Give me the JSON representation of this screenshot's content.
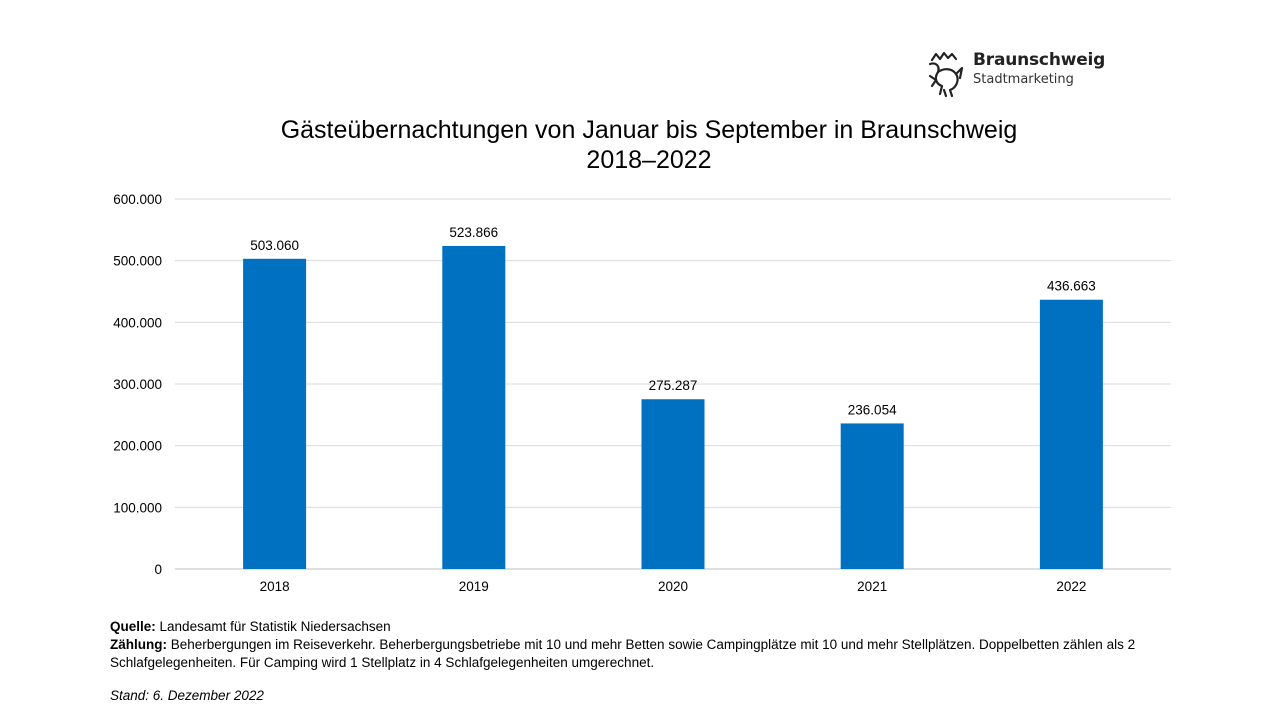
{
  "logo": {
    "name": "Braunschweig",
    "subtitle": "Stadtmarketing"
  },
  "chart_data": {
    "type": "bar",
    "title": "Gästeübernachtungen von Januar bis September in Braunschweig",
    "subtitle": "2018–2022",
    "categories": [
      "2018",
      "2019",
      "2020",
      "2021",
      "2022"
    ],
    "values": [
      503060,
      523866,
      275287,
      236054,
      436663
    ],
    "data_labels": [
      "503.060",
      "523.866",
      "275.287",
      "236.054",
      "436.663"
    ],
    "ylim": [
      0,
      600000
    ],
    "yticks": [
      0,
      100000,
      200000,
      300000,
      400000,
      500000,
      600000
    ],
    "ytick_labels": [
      "0",
      "100.000",
      "200.000",
      "300.000",
      "400.000",
      "500.000",
      "600.000"
    ],
    "xlabel": "",
    "ylabel": "",
    "grid": true,
    "legend": "none",
    "bar_color": "#0070C0"
  },
  "notes": {
    "source_label": "Quelle:",
    "source_text": "Landesamt für Statistik Niedersachsen",
    "count_label": "Zählung:",
    "count_text": "Beherbergungen im Reiseverkehr. Beherbergungsbetriebe mit 10 und mehr Betten sowie Campingplätze mit 10 und mehr Stellplätzen. Doppelbetten zählen als 2 Schlafgelegenheiten. Für Camping wird 1 Stellplatz in 4 Schlafgelegenheiten umgerechnet.",
    "stand": "Stand: 6. Dezember 2022"
  }
}
